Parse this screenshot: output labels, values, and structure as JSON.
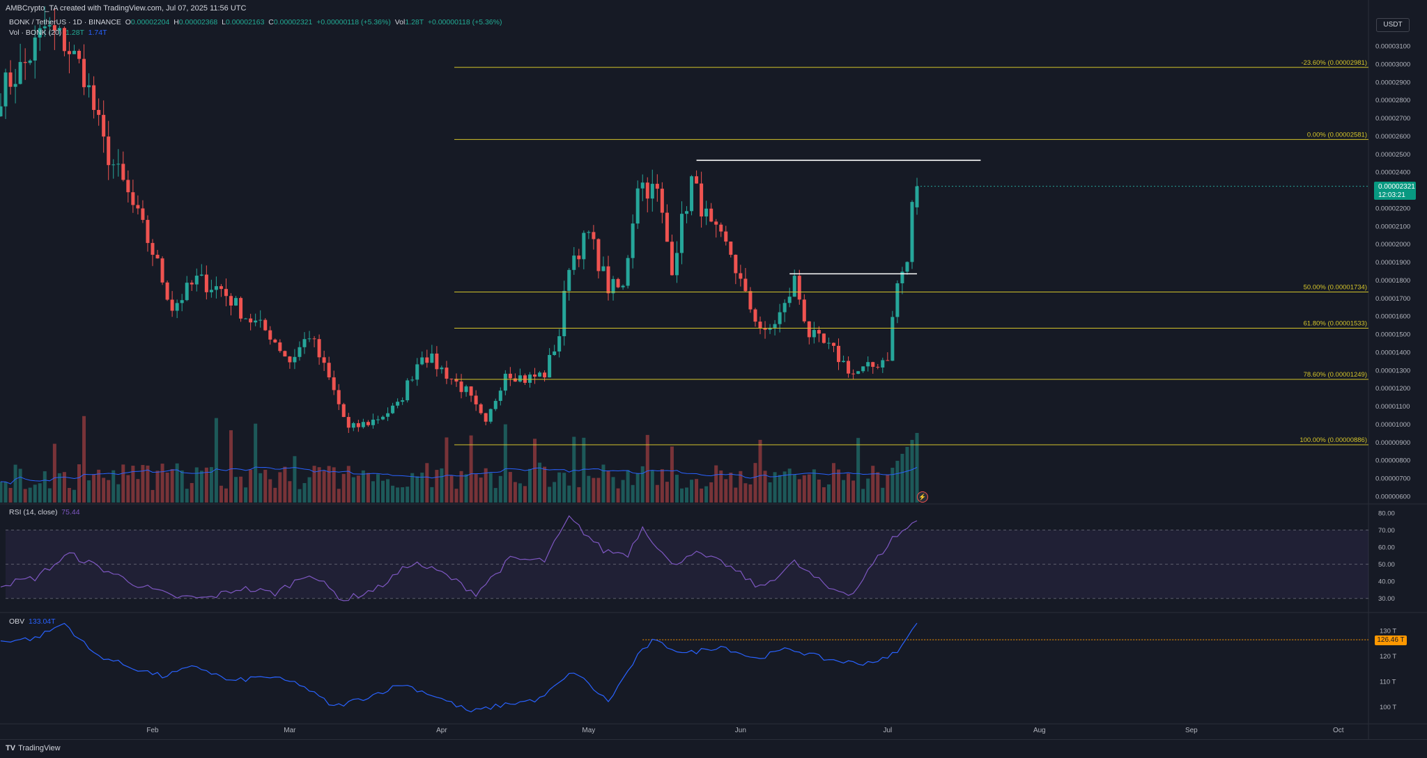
{
  "header": {
    "author_line": "AMBCrypto_TA created with TradingView.com, Jul 07, 2025 11:56 UTC"
  },
  "legend": {
    "symbol": "BONK / TetherUS · 1D · BINANCE",
    "o_label": "O",
    "o_val": "0.00002204",
    "h_label": "H",
    "h_val": "0.00002368",
    "l_label": "L",
    "l_val": "0.00002163",
    "c_label": "C",
    "c_val": "0.00002321",
    "change": "+0.00000118 (+5.36%)",
    "vol_label": "Vol",
    "vol_val": "1.28T",
    "vol_change": "+0.00000118 (+5.36%)",
    "vol_ind_label": "Vol · BONK (20)",
    "vol_ind_val": "1.28T",
    "vol_ma_val": "1.74T"
  },
  "rsi_pane": {
    "label": "RSI (14, close)",
    "value": "75.44"
  },
  "obv_pane": {
    "label": "OBV",
    "value": "133.04T"
  },
  "price_scale": {
    "currency": "USDT",
    "current_price": "0.00002321",
    "countdown": "12:03:21",
    "ticks": [
      "0.00003100",
      "0.00003000",
      "0.00002900",
      "0.00002800",
      "0.00002700",
      "0.00002600",
      "0.00002500",
      "0.00002400",
      "0.00002300",
      "0.00002200",
      "0.00002100",
      "0.00002000",
      "0.00001900",
      "0.00001800",
      "0.00001700",
      "0.00001600",
      "0.00001500",
      "0.00001400",
      "0.00001300",
      "0.00001200",
      "0.00001100",
      "0.00001000",
      "0.00000900",
      "0.00000800",
      "0.00000700",
      "0.00000600"
    ],
    "rsi_ticks": [
      "80.00",
      "70.00",
      "60.00",
      "50.00",
      "40.00",
      "30.00"
    ],
    "obv_ticks": [
      "130 T",
      "120 T",
      "110 T",
      "100 T"
    ],
    "obv_tag": "126.46 T"
  },
  "time_axis": [
    "Feb",
    "Mar",
    "Apr",
    "May",
    "Jun",
    "Jul",
    "Aug",
    "Sep",
    "Oct"
  ],
  "footer": {
    "brand": "TradingView"
  },
  "colors": {
    "background": "#161a25",
    "up": "#26a69a",
    "down": "#ef5350",
    "fib": "#d4c42a",
    "rsi": "#7e57c2",
    "obv": "#2962ff"
  },
  "chart_data": [
    {
      "type": "candlestick",
      "title": "BONK / TetherUS · 1D · BINANCE",
      "ylim": [
        5.6e-06,
        3.16e-05
      ],
      "fib_levels": [
        {
          "label": "-23.60% (0.00002981)",
          "value": 2.981e-05
        },
        {
          "label": "0.00% (0.00002581)",
          "value": 2.581e-05
        },
        {
          "label": "50.00% (0.00001734)",
          "value": 1.734e-05
        },
        {
          "label": "61.80% (0.00001533)",
          "value": 1.533e-05
        },
        {
          "label": "78.60% (0.00001249)",
          "value": 1.249e-05
        },
        {
          "label": "100.00% (0.00000886)",
          "value": 8.86e-06
        }
      ],
      "resistance_lines": [
        {
          "from": "2025-05-23",
          "to": "2025-07-20",
          "value": 2.465e-05
        },
        {
          "from": "2025-06-11",
          "to": "2025-07-07",
          "value": 1.835e-05
        }
      ],
      "start_date": "2025-01-01",
      "last_candle": {
        "date": "2025-07-07",
        "open": 2.204e-05,
        "high": 2.368e-05,
        "low": 2.163e-05,
        "close": 2.321e-05
      },
      "close_path": [
        [
          "2025-01-01",
          2.85e-05
        ],
        [
          "2025-01-06",
          3e-05
        ],
        [
          "2025-01-10",
          3.2e-05
        ],
        [
          "2025-01-14",
          3.12e-05
        ],
        [
          "2025-01-18",
          2.95e-05
        ],
        [
          "2025-01-22",
          2.55e-05
        ],
        [
          "2025-01-26",
          2.33e-05
        ],
        [
          "2025-02-01",
          1.96e-05
        ],
        [
          "2025-02-05",
          1.65e-05
        ],
        [
          "2025-02-10",
          1.8e-05
        ],
        [
          "2025-02-15",
          1.75e-05
        ],
        [
          "2025-02-20",
          1.6e-05
        ],
        [
          "2025-02-25",
          1.5e-05
        ],
        [
          "2025-03-01",
          1.35e-05
        ],
        [
          "2025-03-05",
          1.5e-05
        ],
        [
          "2025-03-09",
          1.25e-05
        ],
        [
          "2025-03-13",
          9.7e-06
        ],
        [
          "2025-03-18",
          1.02e-05
        ],
        [
          "2025-03-23",
          1.1e-05
        ],
        [
          "2025-03-28",
          1.4e-05
        ],
        [
          "2025-04-02",
          1.28e-05
        ],
        [
          "2025-04-06",
          1.18e-05
        ],
        [
          "2025-04-10",
          9.9e-06
        ],
        [
          "2025-04-14",
          1.3e-05
        ],
        [
          "2025-04-18",
          1.25e-05
        ],
        [
          "2025-04-22",
          1.28e-05
        ],
        [
          "2025-04-25",
          1.5e-05
        ],
        [
          "2025-04-27",
          1.9e-05
        ],
        [
          "2025-05-01",
          2.05e-05
        ],
        [
          "2025-05-05",
          1.76e-05
        ],
        [
          "2025-05-08",
          1.75e-05
        ],
        [
          "2025-05-11",
          2.35e-05
        ],
        [
          "2025-05-15",
          2.28e-05
        ],
        [
          "2025-05-18",
          1.88e-05
        ],
        [
          "2025-05-22",
          2.35e-05
        ],
        [
          "2025-05-26",
          2.08e-05
        ],
        [
          "2025-05-30",
          1.95e-05
        ],
        [
          "2025-06-02",
          1.7e-05
        ],
        [
          "2025-06-06",
          1.49e-05
        ],
        [
          "2025-06-10",
          1.65e-05
        ],
        [
          "2025-06-12",
          1.8e-05
        ],
        [
          "2025-06-15",
          1.5e-05
        ],
        [
          "2025-06-20",
          1.4e-05
        ],
        [
          "2025-06-24",
          1.28e-05
        ],
        [
          "2025-06-28",
          1.32e-05
        ],
        [
          "2025-07-01",
          1.38e-05
        ],
        [
          "2025-07-03",
          1.78e-05
        ],
        [
          "2025-07-05",
          1.9e-05
        ],
        [
          "2025-07-06",
          2.2e-05
        ],
        [
          "2025-07-07",
          2.32e-05
        ]
      ],
      "volume_ma": "20-period moving average of volume"
    },
    {
      "type": "line",
      "title": "RSI (14, close)",
      "ylim": [
        25,
        82
      ],
      "bands": [
        70,
        50,
        30
      ],
      "points": [
        [
          "2025-01-01",
          38
        ],
        [
          "2025-01-08",
          42
        ],
        [
          "2025-01-15",
          56
        ],
        [
          "2025-01-22",
          47
        ],
        [
          "2025-01-29",
          38
        ],
        [
          "2025-02-05",
          31
        ],
        [
          "2025-02-12",
          30
        ],
        [
          "2025-02-19",
          36
        ],
        [
          "2025-02-26",
          33
        ],
        [
          "2025-03-05",
          45
        ],
        [
          "2025-03-12",
          29
        ],
        [
          "2025-03-19",
          36
        ],
        [
          "2025-03-26",
          51
        ],
        [
          "2025-04-01",
          45
        ],
        [
          "2025-04-08",
          33
        ],
        [
          "2025-04-15",
          53
        ],
        [
          "2025-04-22",
          52
        ],
        [
          "2025-04-27",
          77
        ],
        [
          "2025-05-04",
          58
        ],
        [
          "2025-05-09",
          56
        ],
        [
          "2025-05-12",
          72
        ],
        [
          "2025-05-18",
          49
        ],
        [
          "2025-05-22",
          57
        ],
        [
          "2025-05-29",
          50
        ],
        [
          "2025-06-05",
          36
        ],
        [
          "2025-06-12",
          51
        ],
        [
          "2025-06-19",
          36
        ],
        [
          "2025-06-24",
          33
        ],
        [
          "2025-06-28",
          50
        ],
        [
          "2025-07-02",
          65
        ],
        [
          "2025-07-07",
          75.44
        ]
      ]
    },
    {
      "type": "line",
      "title": "OBV",
      "ylim": [
        96,
        135
      ],
      "reference_line": 126.46,
      "points": [
        [
          "2025-01-01",
          126
        ],
        [
          "2025-01-08",
          127
        ],
        [
          "2025-01-14",
          133
        ],
        [
          "2025-01-20",
          121
        ],
        [
          "2025-01-27",
          116
        ],
        [
          "2025-02-03",
          112
        ],
        [
          "2025-02-10",
          116
        ],
        [
          "2025-02-17",
          110
        ],
        [
          "2025-02-24",
          112
        ],
        [
          "2025-03-03",
          109
        ],
        [
          "2025-03-10",
          100
        ],
        [
          "2025-03-17",
          104
        ],
        [
          "2025-03-24",
          109
        ],
        [
          "2025-03-31",
          104
        ],
        [
          "2025-04-07",
          98
        ],
        [
          "2025-04-14",
          101
        ],
        [
          "2025-04-21",
          103
        ],
        [
          "2025-04-28",
          114
        ],
        [
          "2025-05-05",
          102
        ],
        [
          "2025-05-11",
          120
        ],
        [
          "2025-05-14",
          126
        ],
        [
          "2025-05-21",
          121
        ],
        [
          "2025-05-28",
          124
        ],
        [
          "2025-06-04",
          119
        ],
        [
          "2025-06-11",
          123
        ],
        [
          "2025-06-18",
          119
        ],
        [
          "2025-06-25",
          117
        ],
        [
          "2025-07-01",
          119
        ],
        [
          "2025-07-04",
          124
        ],
        [
          "2025-07-07",
          133
        ]
      ]
    }
  ]
}
